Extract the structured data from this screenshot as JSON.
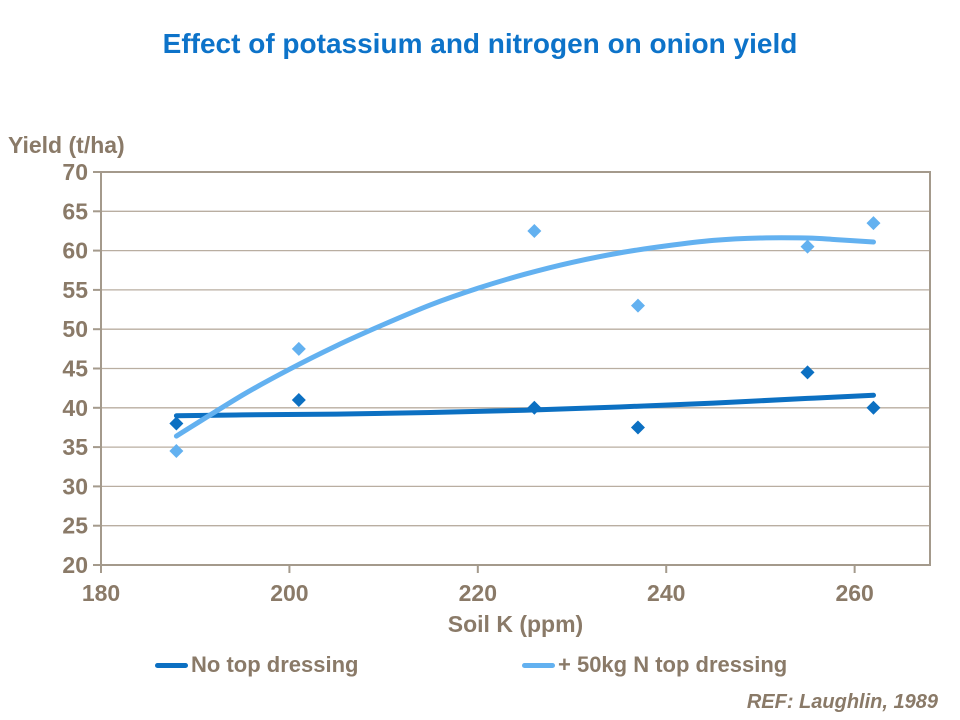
{
  "title": {
    "text": "Effect of potassium and nitrogen on onion yield",
    "color": "#0d73c9"
  },
  "footnote": {
    "text": "REF: Laughlin, 1989"
  },
  "chart_data": {
    "type": "scatter",
    "title": "Effect of potassium and nitrogen on onion yield",
    "xlabel": "Soil K (ppm)",
    "ylabel": "Yield (t/ha)",
    "xlim": [
      180,
      268
    ],
    "ylim": [
      20,
      70
    ],
    "xticks": [
      180,
      200,
      220,
      240,
      260
    ],
    "yticks": [
      20,
      25,
      30,
      35,
      40,
      45,
      50,
      55,
      60,
      65,
      70
    ],
    "grid": "horizontal",
    "legend_position": "bottom",
    "x": [
      188,
      201,
      226,
      237,
      255,
      262
    ],
    "series": [
      {
        "name": "No top dressing",
        "color": "#0c70c2",
        "marker": "diamond",
        "values": [
          38,
          41,
          40,
          37.5,
          44.5,
          40
        ],
        "trend_type": "quadratic",
        "trend_points": [
          [
            188,
            39.0
          ],
          [
            195,
            39.1
          ],
          [
            205,
            39.2
          ],
          [
            215,
            39.4
          ],
          [
            225,
            39.7
          ],
          [
            235,
            40.1
          ],
          [
            245,
            40.6
          ],
          [
            255,
            41.2
          ],
          [
            262,
            41.6
          ]
        ]
      },
      {
        "name": "+ 50kg N top dressing",
        "color": "#63b1f0",
        "marker": "diamond",
        "values": [
          34.5,
          47.5,
          62.5,
          53,
          60.5,
          63.5
        ],
        "trend_type": "quadratic",
        "trend_points": [
          [
            188,
            36.4
          ],
          [
            195,
            41.6
          ],
          [
            200,
            44.9
          ],
          [
            205,
            47.9
          ],
          [
            210,
            50.6
          ],
          [
            215,
            53.1
          ],
          [
            220,
            55.2
          ],
          [
            225,
            57.0
          ],
          [
            230,
            58.5
          ],
          [
            235,
            59.7
          ],
          [
            240,
            60.6
          ],
          [
            245,
            61.3
          ],
          [
            250,
            61.6
          ],
          [
            255,
            61.6
          ],
          [
            258,
            61.4
          ],
          [
            262,
            61.1
          ]
        ]
      }
    ],
    "axis_color": "#a49a8c",
    "grid_color": "#b9aea1",
    "text_color": "#8a7a68"
  }
}
